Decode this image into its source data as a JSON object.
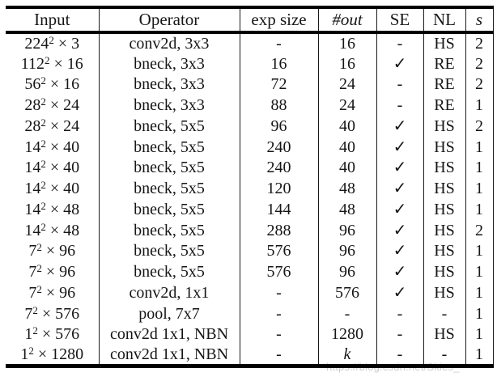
{
  "watermark": {
    "text": "https://blog.csdn.net/Skies_",
    "color": "#c8ccd0"
  },
  "table": {
    "times_symbol": "×",
    "checkmark_symbol": "✓",
    "text_color": "#161616",
    "rule_color": "#000000",
    "columns": [
      {
        "key": "input",
        "label": "Input",
        "italic": false
      },
      {
        "key": "operator",
        "label": "Operator",
        "italic": false
      },
      {
        "key": "exp",
        "label": "exp size",
        "italic": false
      },
      {
        "key": "out",
        "label": "#out",
        "italic": true
      },
      {
        "key": "se",
        "label": "SE",
        "italic": false
      },
      {
        "key": "nl",
        "label": "NL",
        "italic": false
      },
      {
        "key": "s",
        "label": "s",
        "italic": true
      }
    ],
    "rows": [
      {
        "input": {
          "base": "224",
          "sup": "2",
          "ch": "3"
        },
        "operator": "conv2d, 3x3",
        "exp": "-",
        "out": "16",
        "se": "-",
        "nl": "HS",
        "s": "2"
      },
      {
        "input": {
          "base": "112",
          "sup": "2",
          "ch": "16"
        },
        "operator": "bneck, 3x3",
        "exp": "16",
        "out": "16",
        "se": "✓",
        "nl": "RE",
        "s": "2"
      },
      {
        "input": {
          "base": "56",
          "sup": "2",
          "ch": "16"
        },
        "operator": "bneck, 3x3",
        "exp": "72",
        "out": "24",
        "se": "-",
        "nl": "RE",
        "s": "2"
      },
      {
        "input": {
          "base": "28",
          "sup": "2",
          "ch": "24"
        },
        "operator": "bneck, 3x3",
        "exp": "88",
        "out": "24",
        "se": "-",
        "nl": "RE",
        "s": "1"
      },
      {
        "input": {
          "base": "28",
          "sup": "2",
          "ch": "24"
        },
        "operator": "bneck, 5x5",
        "exp": "96",
        "out": "40",
        "se": "✓",
        "nl": "HS",
        "s": "2"
      },
      {
        "input": {
          "base": "14",
          "sup": "2",
          "ch": "40"
        },
        "operator": "bneck, 5x5",
        "exp": "240",
        "out": "40",
        "se": "✓",
        "nl": "HS",
        "s": "1"
      },
      {
        "input": {
          "base": "14",
          "sup": "2",
          "ch": "40"
        },
        "operator": "bneck, 5x5",
        "exp": "240",
        "out": "40",
        "se": "✓",
        "nl": "HS",
        "s": "1"
      },
      {
        "input": {
          "base": "14",
          "sup": "2",
          "ch": "40"
        },
        "operator": "bneck, 5x5",
        "exp": "120",
        "out": "48",
        "se": "✓",
        "nl": "HS",
        "s": "1"
      },
      {
        "input": {
          "base": "14",
          "sup": "2",
          "ch": "48"
        },
        "operator": "bneck, 5x5",
        "exp": "144",
        "out": "48",
        "se": "✓",
        "nl": "HS",
        "s": "1"
      },
      {
        "input": {
          "base": "14",
          "sup": "2",
          "ch": "48"
        },
        "operator": "bneck, 5x5",
        "exp": "288",
        "out": "96",
        "se": "✓",
        "nl": "HS",
        "s": "2"
      },
      {
        "input": {
          "base": "7",
          "sup": "2",
          "ch": "96"
        },
        "operator": "bneck, 5x5",
        "exp": "576",
        "out": "96",
        "se": "✓",
        "nl": "HS",
        "s": "1"
      },
      {
        "input": {
          "base": "7",
          "sup": "2",
          "ch": "96"
        },
        "operator": "bneck, 5x5",
        "exp": "576",
        "out": "96",
        "se": "✓",
        "nl": "HS",
        "s": "1"
      },
      {
        "input": {
          "base": "7",
          "sup": "2",
          "ch": "96"
        },
        "operator": "conv2d, 1x1",
        "exp": "-",
        "out": "576",
        "se": "✓",
        "nl": "HS",
        "s": "1"
      },
      {
        "input": {
          "base": "7",
          "sup": "2",
          "ch": "576"
        },
        "operator": "pool, 7x7",
        "exp": "-",
        "out": "-",
        "se": "-",
        "nl": "-",
        "s": "1"
      },
      {
        "input": {
          "base": "1",
          "sup": "2",
          "ch": "576"
        },
        "operator": "conv2d 1x1, NBN",
        "exp": "-",
        "out": "1280",
        "se": "-",
        "nl": "HS",
        "s": "1"
      },
      {
        "input": {
          "base": "1",
          "sup": "2",
          "ch": "1280"
        },
        "operator": "conv2d 1x1, NBN",
        "exp": "-",
        "out": "k",
        "se": "-",
        "nl": "-",
        "s": "1",
        "italics": [
          "out"
        ]
      }
    ]
  }
}
